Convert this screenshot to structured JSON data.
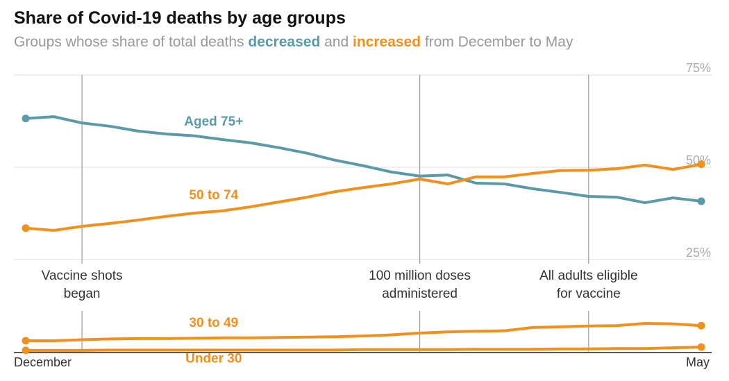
{
  "chart_data": {
    "type": "line",
    "title": "Share of Covid-19 deaths by age groups",
    "subtitle": [
      {
        "text": "Groups whose share of total deaths "
      },
      {
        "text": "decreased",
        "color": "#5b9aa8"
      },
      {
        "text": " and "
      },
      {
        "text": "increased",
        "color": "#f0911f"
      },
      {
        "text": " from December to May"
      }
    ],
    "categories": [
      "December",
      null,
      null,
      null,
      null,
      null,
      null,
      null,
      null,
      null,
      null,
      null,
      null,
      null,
      null,
      null,
      null,
      null,
      null,
      null,
      null,
      null,
      null,
      null,
      "May"
    ],
    "series": [
      {
        "name": "Aged 75+",
        "color": "#5b9aa8",
        "values": [
          63.2,
          63.7,
          62.0,
          61.1,
          59.8,
          59.0,
          58.5,
          57.5,
          56.6,
          55.3,
          53.8,
          51.9,
          50.4,
          48.7,
          47.6,
          47.9,
          45.7,
          45.5,
          44.2,
          43.2,
          42.1,
          41.9,
          40.4,
          41.7,
          40.8
        ]
      },
      {
        "name": "50 to 74",
        "color": "#f0911f",
        "values": [
          33.5,
          32.9,
          34.0,
          34.8,
          35.7,
          36.7,
          37.6,
          38.2,
          39.3,
          40.6,
          41.9,
          43.4,
          44.5,
          45.5,
          46.8,
          45.5,
          47.4,
          47.4,
          48.3,
          49.1,
          49.2,
          49.6,
          50.6,
          49.4,
          50.8
        ]
      },
      {
        "name": "30 to 49",
        "color": "#f0911f",
        "values": [
          3.0,
          3.0,
          3.3,
          3.5,
          3.6,
          3.6,
          3.7,
          3.8,
          3.8,
          3.9,
          4.0,
          4.1,
          4.3,
          4.6,
          5.1,
          5.4,
          5.6,
          5.7,
          6.6,
          6.8,
          7.0,
          7.1,
          7.7,
          7.6,
          7.1
        ]
      },
      {
        "name": "Under 30",
        "color": "#f0911f",
        "values": [
          0.4,
          0.4,
          0.4,
          0.5,
          0.5,
          0.5,
          0.5,
          0.5,
          0.5,
          0.5,
          0.5,
          0.5,
          0.6,
          0.6,
          0.6,
          0.6,
          0.7,
          0.7,
          0.7,
          0.8,
          0.8,
          0.9,
          0.9,
          1.1,
          1.3
        ]
      }
    ],
    "annotations": [
      {
        "lines": [
          "Vaccine shots",
          "began"
        ],
        "x": 2
      },
      {
        "lines": [
          "100 million doses",
          "administered"
        ],
        "x": 14
      },
      {
        "lines": [
          "All adults eligible",
          "for vaccine"
        ],
        "x": 20
      }
    ],
    "ylim": [
      0,
      75
    ],
    "yticks": [
      {
        "value": 25,
        "label": "25%"
      },
      {
        "value": 50,
        "label": "50%"
      },
      {
        "value": 75,
        "label": "75%"
      }
    ],
    "grid": true
  }
}
